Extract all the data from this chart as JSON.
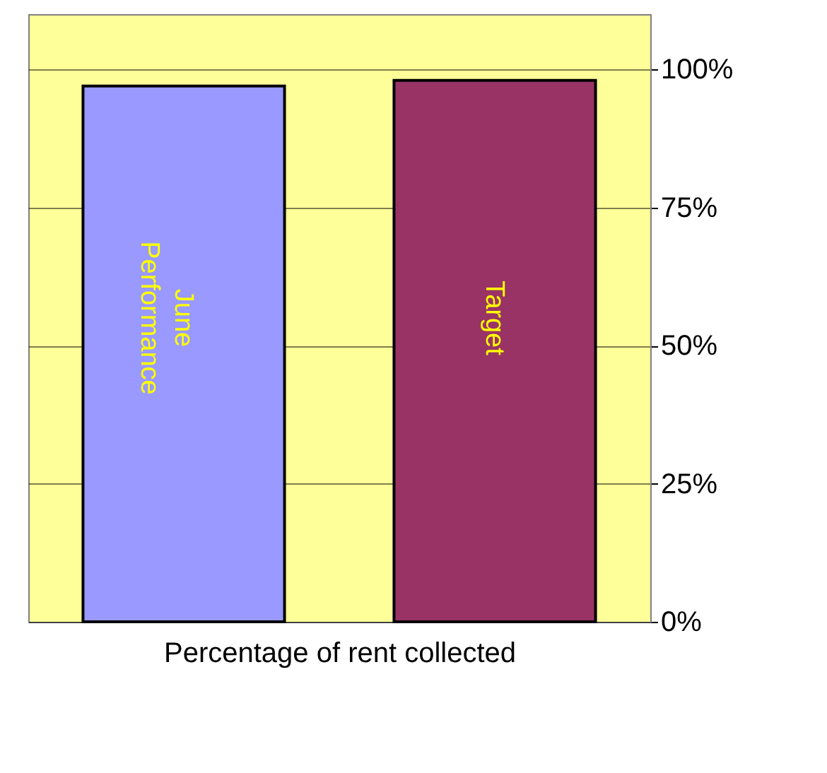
{
  "chart_data": {
    "type": "bar",
    "xlabel": "Percentage of rent collected",
    "categories": [
      "June Performance",
      "Target"
    ],
    "values": [
      97,
      98
    ],
    "colors": [
      "#9999ff",
      "#993366"
    ],
    "ylim": [
      0,
      110
    ],
    "yticks": [
      {
        "value": 0,
        "label": "0%"
      },
      {
        "value": 25,
        "label": "25%"
      },
      {
        "value": 50,
        "label": "50%"
      },
      {
        "value": 75,
        "label": "75%"
      },
      {
        "value": 100,
        "label": "100%"
      }
    ],
    "grid": "y",
    "tick_labels": "y"
  }
}
